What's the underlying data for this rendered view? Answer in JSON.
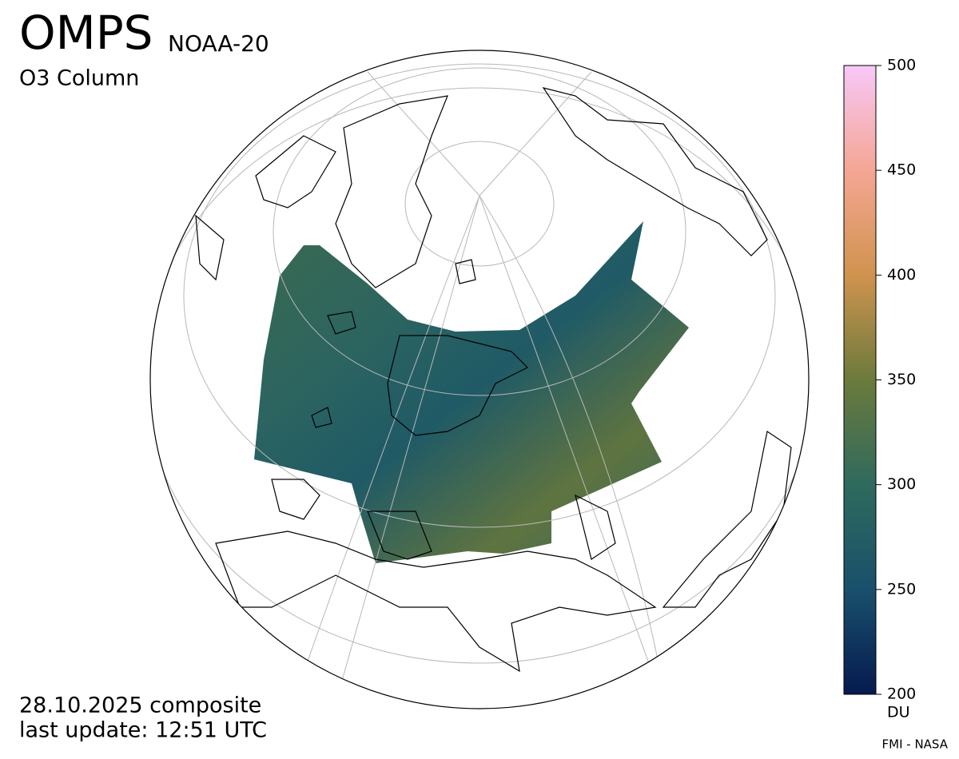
{
  "header": {
    "title": "OMPS",
    "satellite": "NOAA-20",
    "product": "O3 Column"
  },
  "colorbar": {
    "lim": [
      200,
      500
    ],
    "ticks": [
      200,
      250,
      300,
      350,
      400,
      450,
      500
    ],
    "unit": "DU",
    "colors": [
      "#061a50",
      "#19506b",
      "#2f6a5e",
      "#6b7a3c",
      "#d0934e",
      "#f5a694",
      "#f7c8f8"
    ]
  },
  "footer": {
    "date": "28.10.2025 composite",
    "update": "last update: 12:51 UTC",
    "credit": "FMI - NASA"
  }
}
